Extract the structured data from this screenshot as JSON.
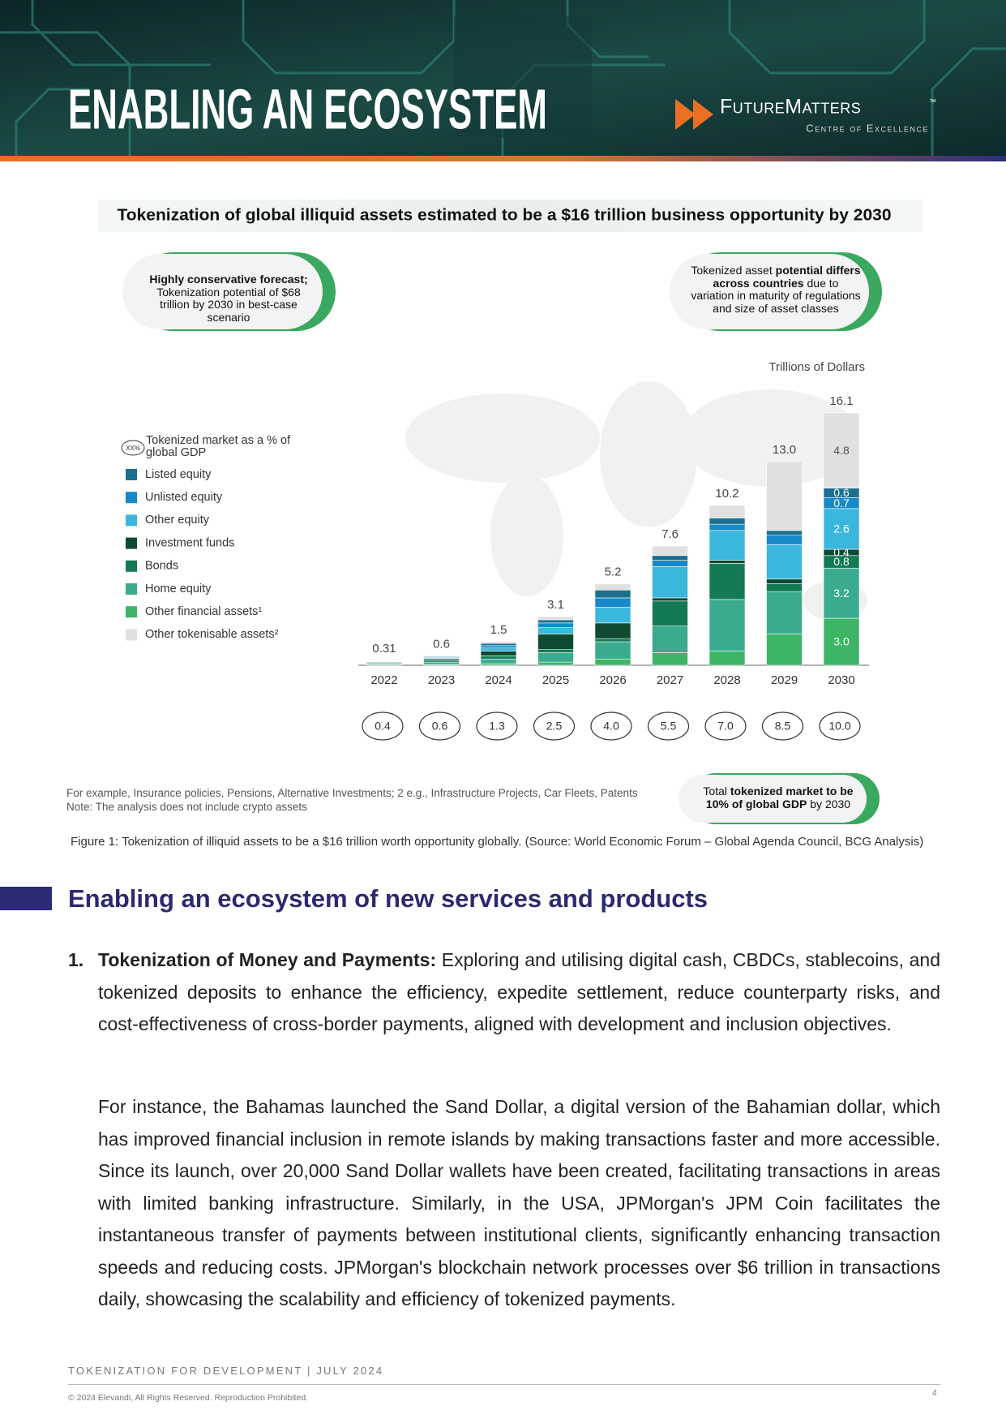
{
  "header": {
    "title": "ENABLING AN ECOSYSTEM",
    "logo_name": "FutureMatters",
    "logo_tm": "™",
    "logo_sub": "Centre of Excellence"
  },
  "chart_data": {
    "type": "bar",
    "stacked": true,
    "title": "Tokenization of global illiquid assets estimated to be a $16 trillion business opportunity by 2030",
    "callouts": [
      [
        {
          "text": "Highly conservative forecast;",
          "bold": true
        },
        {
          "text": " Tokenization potential of $68 trillion by 2030 in best-case scenario",
          "bold": false
        }
      ],
      [
        {
          "text": "Tokenized asset ",
          "bold": false
        },
        {
          "text": "potential differs across countries",
          "bold": true
        },
        {
          "text": " due to variation in maturity of regulations and size of asset classes",
          "bold": false
        }
      ],
      [
        {
          "text": "Total ",
          "bold": false
        },
        {
          "text": "tokenized market to be 10% of global GDP",
          "bold": true
        },
        {
          "text": " by 2030",
          "bold": false
        }
      ]
    ],
    "unit_label": "Trillions of Dollars",
    "gdp_legend_icon": "XX%",
    "gdp_legend_label": "Tokenized market as a % of global GDP",
    "categories": [
      "2022",
      "2023",
      "2024",
      "2025",
      "2026",
      "2027",
      "2028",
      "2029",
      "2030"
    ],
    "series": [
      {
        "name": "Listed equity",
        "color": "#1b6f8f",
        "values": [
          0.02,
          0.05,
          0.15,
          0.2,
          0.5,
          0.3,
          0.4,
          0.3,
          0.6
        ],
        "value_labels": [
          null,
          null,
          null,
          null,
          null,
          null,
          null,
          null,
          "0.6"
        ]
      },
      {
        "name": "Unlisted equity",
        "color": "#1888c8",
        "values": [
          0.03,
          0.05,
          0.15,
          0.3,
          0.6,
          0.4,
          0.4,
          0.6,
          0.7
        ],
        "value_labels": [
          null,
          null,
          null,
          null,
          null,
          null,
          null,
          null,
          "0.7"
        ]
      },
      {
        "name": "Other equity",
        "color": "#3bb6dc",
        "values": [
          0.03,
          0.05,
          0.2,
          0.4,
          1.0,
          2.0,
          1.9,
          2.2,
          2.6
        ],
        "value_labels": [
          null,
          null,
          null,
          null,
          null,
          null,
          null,
          null,
          "2.6"
        ]
      },
      {
        "name": "Investment funds",
        "color": "#0f4a31",
        "values": [
          0.05,
          0.1,
          0.3,
          1.0,
          1.0,
          0.2,
          0.2,
          0.3,
          0.4
        ],
        "value_labels": [
          null,
          null,
          null,
          null,
          null,
          null,
          null,
          null,
          "0.4"
        ]
      },
      {
        "name": "Bonds",
        "color": "#137a53",
        "values": [
          0.05,
          0.1,
          0.2,
          0.2,
          0.2,
          1.6,
          2.3,
          0.5,
          0.8
        ],
        "value_labels": [
          null,
          null,
          null,
          null,
          null,
          null,
          null,
          null,
          "0.8"
        ]
      },
      {
        "name": "Home equity",
        "color": "#3aab8f",
        "values": [
          0.08,
          0.15,
          0.3,
          0.6,
          1.1,
          1.7,
          3.3,
          2.7,
          3.2
        ],
        "value_labels": [
          null,
          null,
          null,
          null,
          null,
          null,
          null,
          null,
          "3.2"
        ]
      },
      {
        "name": "Other financial assets¹",
        "color": "#3db565",
        "values": [
          0.03,
          0.05,
          0.1,
          0.2,
          0.4,
          0.8,
          0.9,
          2.0,
          3.0
        ],
        "value_labels": [
          null,
          null,
          null,
          null,
          null,
          null,
          null,
          null,
          "3.0"
        ]
      },
      {
        "name": "Other tokenisable assets²",
        "color": "#e0e0e0",
        "values": [
          0.02,
          0.05,
          0.1,
          0.2,
          0.4,
          0.6,
          0.8,
          4.4,
          4.8
        ],
        "value_labels": [
          null,
          null,
          null,
          null,
          null,
          null,
          null,
          null,
          "4.8"
        ]
      }
    ],
    "totals": [
      0.31,
      0.6,
      1.5,
      3.1,
      5.2,
      7.6,
      10.2,
      13.0,
      16.1
    ],
    "total_labels": [
      "0.31",
      "0.6",
      "1.5",
      "3.1",
      "5.2",
      "7.6",
      "10.2",
      "13.0",
      "16.1"
    ],
    "gdp_share": [
      0.4,
      0.6,
      1.3,
      2.5,
      4.0,
      5.5,
      7.0,
      8.5,
      10.0
    ],
    "gdp_labels": [
      "0.4",
      "0.6",
      "1.3",
      "2.5",
      "4.0",
      "5.5",
      "7.0",
      "8.5",
      "10.0"
    ]
  },
  "notes": [
    "For example, Insurance policies, Pensions, Alternative Investments; 2 e.g., Infrastructure Projects, Car Fleets, Patents",
    "Note: The analysis does not include crypto assets"
  ],
  "figure_caption": "Figure 1: Tokenization of illiquid assets to be a $16 trillion worth opportunity globally. (Source:  World Economic Forum – Global Agenda Council, BCG Analysis)",
  "section": {
    "heading": "Enabling an ecosystem of new services and products",
    "items": [
      {
        "number": "1.",
        "title": "Tokenization of Money and Payments:",
        "text": " Exploring and utilising digital cash, CBDCs, stablecoins, and tokenized deposits to enhance the efficiency, expedite settlement, reduce counterparty risks, and cost-effectiveness of cross-border payments, aligned with development and inclusion objectives."
      }
    ],
    "paragraph": "For instance, the Bahamas launched the Sand Dollar, a digital version of the Bahamian dollar, which has improved financial inclusion in remote islands by making transactions faster and more accessible. Since its launch, over 20,000 Sand Dollar wallets have been created, facilitating transactions in areas with limited banking infrastructure. Similarly, in the USA, JPMorgan's JPM Coin facilitates the instantaneous transfer of payments between institutional clients, significantly enhancing transaction speeds and reducing costs. JPMorgan's blockchain network processes over $6 trillion in transactions daily, showcasing the scalability and efficiency of tokenized payments."
  },
  "footer": {
    "running_title": "TOKENIZATION FOR DEVELOPMENT | JULY 2024",
    "copyright": "© 2024 Elevandi, All Rights Reserved. Reproduction Prohibited.",
    "page": "4"
  }
}
